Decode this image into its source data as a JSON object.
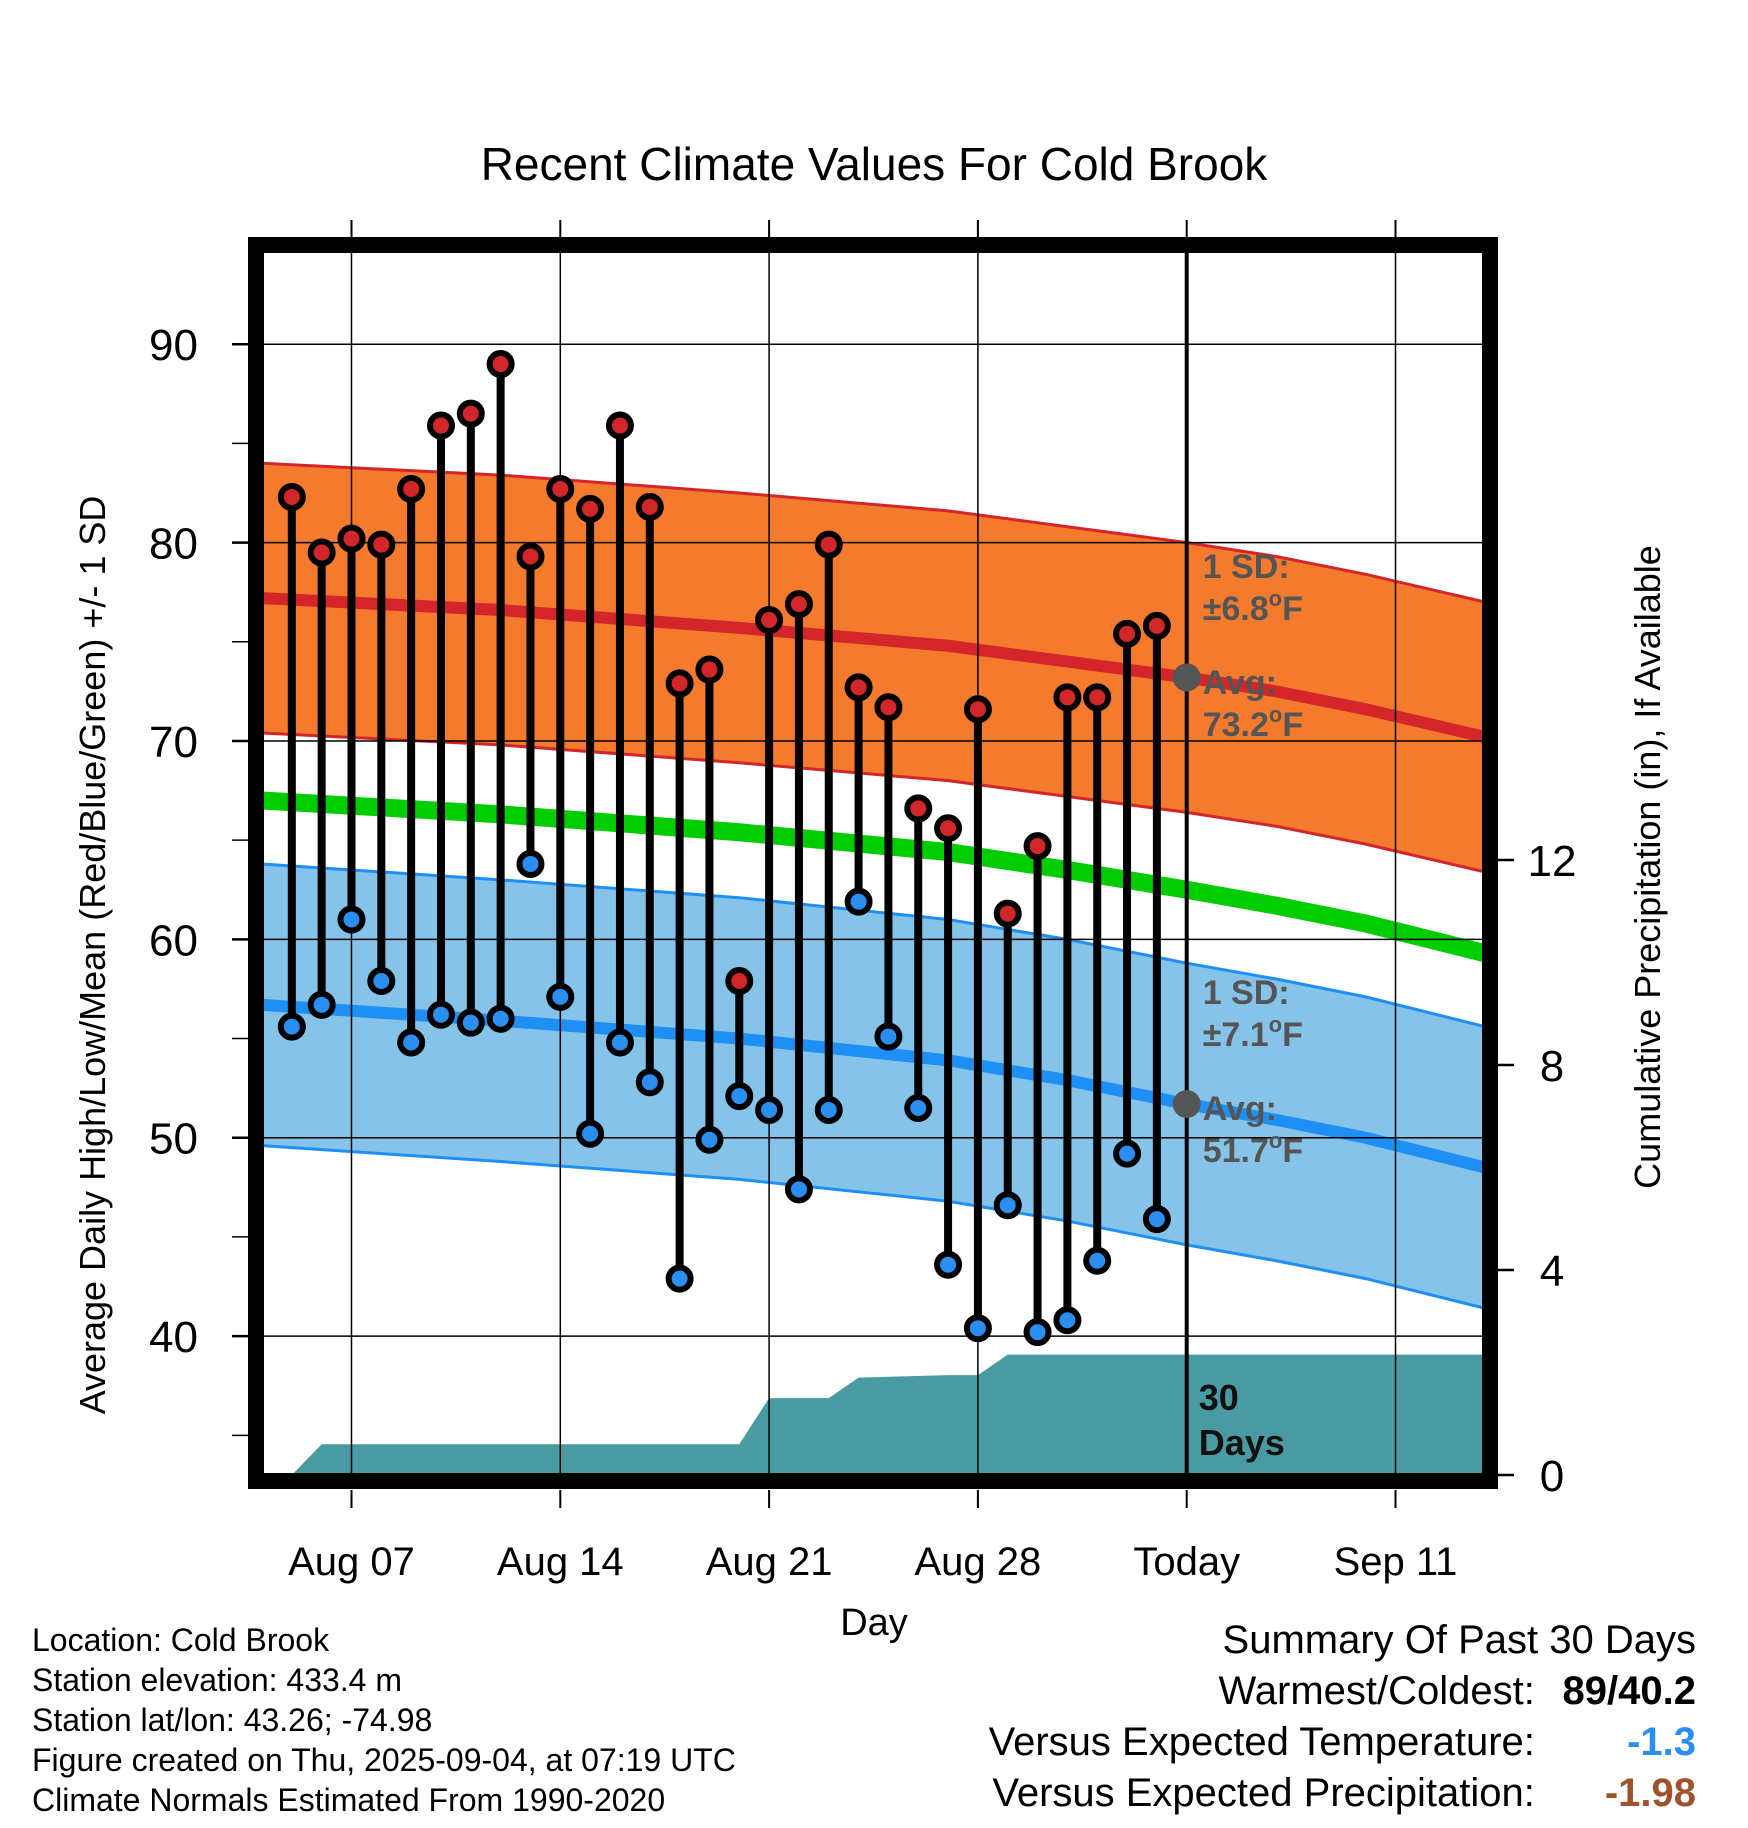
{
  "chart_data": {
    "type": "line",
    "title": "Recent Climate Values For Cold Brook",
    "xlabel": "Day",
    "ylabel": "Average Daily High/Low/Mean (Red/Blue/Green) +/- 1 SD",
    "y2label": "Cumulative Precipitation (in), If Available",
    "ylim": [
      33,
      95
    ],
    "y2lim": [
      0,
      24
    ],
    "yticks": [
      40,
      50,
      60,
      70,
      80,
      90
    ],
    "y2ticks": [
      0,
      4,
      8,
      12
    ],
    "grid": true,
    "xticks": [
      {
        "day": 7,
        "label": "Aug 07"
      },
      {
        "day": 14,
        "label": "Aug 14"
      },
      {
        "day": 21,
        "label": "Aug 21"
      },
      {
        "day": 28,
        "label": "Aug 28"
      },
      {
        "day": 35,
        "label": "Today"
      },
      {
        "day": 42,
        "label": "Sep 11"
      }
    ],
    "xlim": [
      4,
      45
    ],
    "today_day": 35,
    "daily": {
      "day": [
        5,
        6,
        7,
        8,
        9,
        10,
        11,
        12,
        13,
        14,
        15,
        16,
        17,
        18,
        19,
        20,
        21,
        22,
        23,
        24,
        25,
        26,
        27,
        28,
        29,
        30,
        31,
        32,
        33,
        34
      ],
      "high": [
        82.3,
        79.5,
        80.2,
        79.9,
        82.7,
        85.9,
        86.5,
        89,
        79.3,
        82.7,
        81.7,
        85.9,
        81.8,
        72.9,
        73.6,
        57.9,
        76.1,
        76.9,
        79.9,
        72.7,
        71.7,
        66.6,
        65.6,
        71.6,
        61.3,
        64.7,
        72.2,
        72.2,
        75.4,
        75.8
      ],
      "low": [
        55.6,
        56.7,
        61,
        57.9,
        54.8,
        56.2,
        55.8,
        56,
        63.8,
        57.1,
        50.2,
        54.8,
        52.8,
        42.9,
        49.9,
        52.1,
        51.4,
        47.4,
        51.4,
        61.9,
        55.1,
        51.5,
        43.6,
        40.4,
        46.6,
        40.2,
        40.8,
        43.8,
        49.2,
        45.9
      ]
    },
    "normals": {
      "day": [
        4,
        12,
        20,
        27,
        31,
        35,
        38,
        41,
        45
      ],
      "high_mean": [
        77.2,
        76.6,
        75.7,
        74.8,
        74,
        73.2,
        72.5,
        71.6,
        70.2
      ],
      "high_sd": 6.8,
      "low_mean": [
        56.7,
        55.9,
        55,
        53.9,
        52.9,
        51.7,
        50.9,
        50,
        48.5
      ],
      "low_sd": 7.1,
      "mean": [
        67,
        66.3,
        65.4,
        64.4,
        63.5,
        62.5,
        61.7,
        60.8,
        59.3
      ]
    },
    "precip": {
      "day": [
        5,
        6,
        20,
        21,
        23,
        24,
        27,
        28,
        29,
        30,
        45
      ],
      "cumulative": [
        0,
        0.6,
        0.6,
        1.5,
        1.5,
        1.9,
        1.95,
        1.95,
        2.35,
        2.35,
        2.35
      ]
    },
    "annotations": {
      "high_sd": "1 SD:",
      "high_sd_val": "±6.8",
      "high_avg": "Avg:",
      "high_avg_val": "73.2",
      "low_sd": "1 SD:",
      "low_sd_val": "±7.1",
      "low_avg": "Avg:",
      "low_avg_val": "51.7",
      "unit": "F",
      "deg": "o",
      "days_num": "30",
      "days_word": "Days"
    }
  },
  "meta": {
    "location": "Location: Cold Brook",
    "elevation": "Station elevation: 433.4 m",
    "latlon": "Station lat/lon: 43.26; -74.98",
    "created": "Figure created on Thu, 2025-09-04, at 07:19 UTC",
    "normals": "Climate Normals Estimated From 1990-2020"
  },
  "summary": {
    "title": "Summary Of Past 30 Days",
    "warm_cold_label": "Warmest/Coldest:",
    "warm_cold_value": "89/40.2",
    "temp_label": "Versus Expected Temperature:",
    "temp_value": "-1.3",
    "precip_label": "Versus Expected Precipitation:",
    "precip_value": "-1.98"
  },
  "colors": {
    "high_band": "#f47a2e",
    "high_line": "#d4262a",
    "low_band": "#85c3e8",
    "low_line": "#1e8ff5",
    "mean_line": "#00cc00",
    "precip": "#4a9aa3",
    "high_dot": "#d1262a",
    "low_dot": "#2a8ff0",
    "annotation": "#555555",
    "temp_value": "#2a8ff0",
    "precip_value": "#a0522d"
  }
}
